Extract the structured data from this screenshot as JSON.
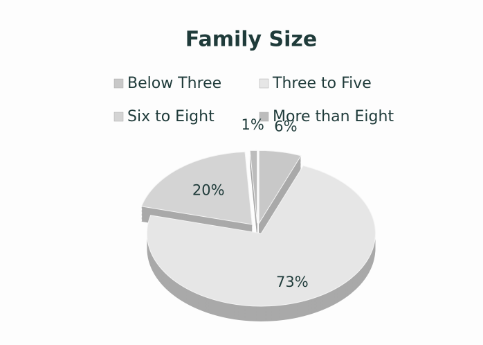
{
  "chart_data": {
    "type": "pie",
    "title": "Family Size",
    "categories": [
      "Below Three",
      "Three to Five",
      "Six to Eight",
      "More than Eight"
    ],
    "values": [
      6,
      73,
      20,
      1
    ],
    "value_labels": [
      "6%",
      "73%",
      "20%",
      "1%"
    ],
    "colors": [
      "#c8c8c8",
      "#e6e6e6",
      "#d4d4d4",
      "#bcbcbc"
    ],
    "legend": "top"
  }
}
